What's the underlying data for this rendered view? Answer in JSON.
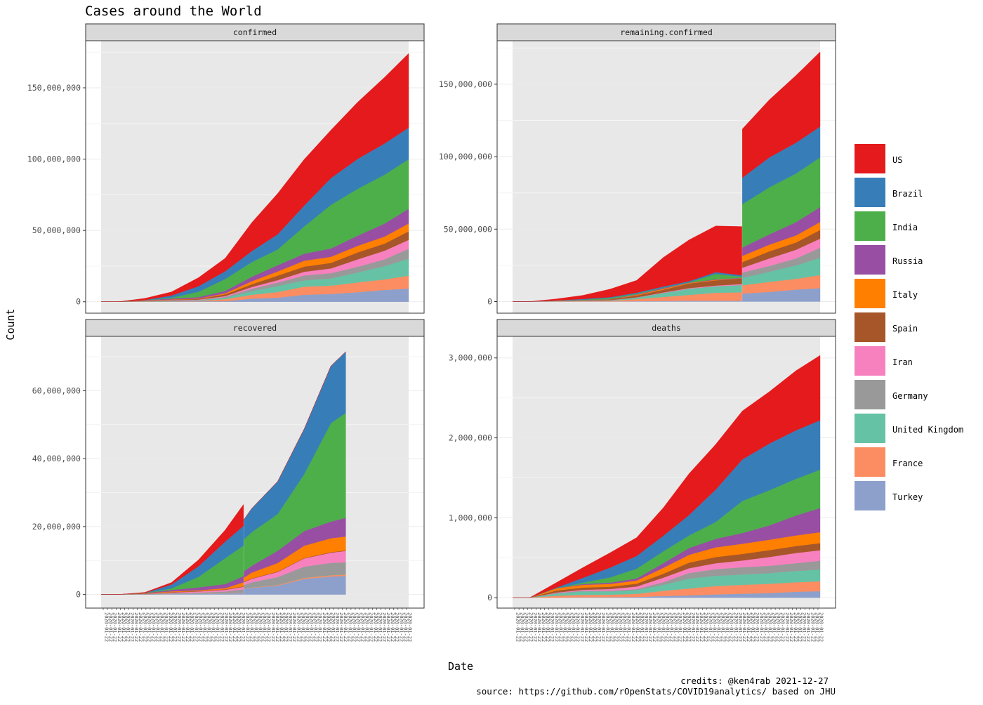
{
  "chart_data": {
    "type": "area",
    "stacked": true,
    "title": "Cases around the World",
    "xlabel": "Date",
    "ylabel": "Count",
    "legend_position": "right",
    "caption": [
      "credits:  @ken4rab 2021-12-27",
      "source: https://github.com/rOpenStats/COVID19analytics/ based on JHU"
    ],
    "x_dates": [
      "2020-01-22",
      "2020-03-01",
      "2020-05-01",
      "2020-07-01",
      "2020-09-01",
      "2020-11-01",
      "2021-01-01",
      "2021-03-01",
      "2021-05-01",
      "2021-07-01",
      "2021-09-01",
      "2021-11-01",
      "2021-12-26"
    ],
    "series_order": [
      "US",
      "Brazil",
      "India",
      "Russia",
      "Italy",
      "Spain",
      "Iran",
      "Germany",
      "United Kingdom",
      "France",
      "Turkey"
    ],
    "colors": {
      "US": "#E41A1C",
      "Brazil": "#377EB8",
      "India": "#4DAF4A",
      "Russia": "#984EA3",
      "Italy": "#FF7F00",
      "Spain": "#A65628",
      "Iran": "#F781BF",
      "Germany": "#999999",
      "United Kingdom": "#66C2A5",
      "France": "#FC8D62",
      "Turkey": "#8DA0CB"
    },
    "panels": [
      {
        "strip": "confirmed",
        "ylim": [
          -8000000,
          183000000
        ],
        "y_ticks": [
          0,
          50000000,
          100000000,
          150000000
        ],
        "y_tick_labels": [
          "0",
          "50,000,000",
          "100,000,000",
          "150,000,000"
        ],
        "x_tick_count": 72,
        "x_tick_text": "2020-01-22",
        "series": {
          "Turkey": [
            0,
            0,
            0.01,
            0.2,
            0.3,
            0.4,
            2.2,
            2.9,
            4.9,
            5.5,
            6.7,
            8.3,
            9.3
          ],
          "France": [
            0,
            0,
            0.15,
            0.17,
            0.3,
            1.4,
            2.7,
            3.9,
            5.7,
            5.8,
            6.9,
            7.4,
            9.0
          ],
          "United Kingdom": [
            0,
            0,
            0.2,
            0.3,
            0.35,
            1.0,
            2.5,
            4.2,
            4.4,
            5.0,
            7.0,
            9.3,
            11.9
          ],
          "Germany": [
            0,
            0,
            0.16,
            0.2,
            0.24,
            0.55,
            1.75,
            2.45,
            3.45,
            3.75,
            4.0,
            4.8,
            7.0
          ],
          "Iran": [
            0,
            0,
            0.1,
            0.23,
            0.38,
            0.63,
            1.23,
            1.68,
            2.6,
            3.3,
            5.2,
            6.0,
            6.2
          ],
          "Spain": [
            0,
            0,
            0.2,
            0.25,
            0.45,
            1.2,
            1.9,
            3.2,
            3.6,
            3.9,
            4.9,
            5.0,
            6.0
          ],
          "Italy": [
            0,
            0,
            0.2,
            0.24,
            0.27,
            0.73,
            2.13,
            2.93,
            4.13,
            4.27,
            4.6,
            4.9,
            5.5
          ],
          "Russia": [
            0,
            0,
            0.12,
            0.65,
            1.0,
            1.7,
            3.1,
            4.3,
            4.9,
            5.8,
            7.1,
            9.1,
            10.3
          ],
          "India": [
            0,
            0,
            0.04,
            0.6,
            3.7,
            8.3,
            10.3,
            11.1,
            19.1,
            30.6,
            32.9,
            34.3,
            34.7
          ],
          "Brazil": [
            0,
            0,
            0.09,
            1.5,
            3.9,
            5.5,
            7.7,
            10.6,
            14.7,
            18.8,
            21.0,
            21.9,
            22.2
          ],
          "US": [
            0,
            0.01,
            1.1,
            2.6,
            6.0,
            9.1,
            20.0,
            28.6,
            32.4,
            33.6,
            39.8,
            46.4,
            52.0
          ]
        },
        "series_units": 1000000
      },
      {
        "strip": "remaining.confirmed",
        "ylim": [
          -8000000,
          180000000
        ],
        "y_ticks": [
          0,
          50000000,
          100000000,
          150000000
        ],
        "y_tick_labels": [
          "0",
          "50,000,000",
          "100,000,000",
          "150,000,000"
        ],
        "x_tick_count": 72,
        "x_tick_text": "2020-01-22",
        "series_units": 1000000,
        "segments": [
          {
            "x_dates": [
              "2020-01-22",
              "2020-03-01",
              "2020-05-01",
              "2020-07-01",
              "2020-09-01",
              "2020-11-01",
              "2021-01-01",
              "2021-03-01",
              "2021-05-01",
              "2021-06-30"
            ],
            "series": {
              "Turkey": [
                0,
                0,
                0.03,
                0.08,
                0.1,
                0.3,
                0.5,
                0.6,
                0.6,
                0.6
              ],
              "France": [
                0,
                0,
                0.2,
                0.3,
                0.5,
                1.4,
                2.7,
                4.0,
                5.5,
                5.8
              ],
              "United Kingdom": [
                0,
                0,
                0.2,
                0.3,
                0.35,
                1.0,
                2.5,
                4.2,
                4.4,
                5.0
              ],
              "Germany": [
                0,
                0,
                0.02,
                0.02,
                0.03,
                0.15,
                0.3,
                0.1,
                0.1,
                0.1
              ],
              "Iran": [
                0,
                0,
                0.02,
                0.03,
                0.05,
                0.1,
                0.3,
                0.4,
                0.5,
                0.6
              ],
              "Spain": [
                0,
                0,
                0.2,
                0.25,
                0.45,
                1.2,
                1.9,
                3.2,
                3.6,
                3.9
              ],
              "Italy": [
                0,
                0,
                0.1,
                0.02,
                0.02,
                0.5,
                0.6,
                0.4,
                0.3,
                0.1
              ],
              "Russia": [
                0,
                0,
                0.05,
                0.1,
                0.15,
                0.4,
                0.6,
                0.2,
                0.4,
                0.3
              ],
              "India": [
                0,
                0,
                0.02,
                0.2,
                0.8,
                0.5,
                0.3,
                0.2,
                3.7,
                0.8
              ],
              "Brazil": [
                0,
                0,
                0.02,
                0.5,
                0.6,
                0.6,
                0.7,
                0.8,
                1.2,
                1.0
              ],
              "US": [
                0,
                0.01,
                1.0,
                2.5,
                5.5,
                8.5,
                20.0,
                28.5,
                31.9,
                33.6
              ]
            }
          },
          {
            "x_dates": [
              "2021-07-01",
              "2021-09-01",
              "2021-11-01",
              "2021-12-26"
            ],
            "series": {
              "Turkey": [
                5.5,
                6.7,
                8.3,
                9.3
              ],
              "France": [
                5.8,
                6.9,
                7.4,
                9.0
              ],
              "United Kingdom": [
                5.0,
                7.0,
                9.3,
                11.9
              ],
              "Germany": [
                3.75,
                4.0,
                4.8,
                7.0
              ],
              "Iran": [
                3.3,
                5.2,
                6.0,
                6.2
              ],
              "Spain": [
                3.9,
                4.9,
                5.0,
                6.0
              ],
              "Italy": [
                4.27,
                4.6,
                4.9,
                5.5
              ],
              "Russia": [
                5.8,
                7.1,
                9.1,
                10.3
              ],
              "India": [
                29.9,
                32.5,
                33.6,
                34.3
              ],
              "Brazil": [
                18.3,
                20.6,
                21.3,
                21.3
              ],
              "US": [
                33.6,
                39.8,
                46.4,
                51.5
              ]
            }
          }
        ]
      },
      {
        "strip": "recovered",
        "ylim": [
          -4000000,
          76000000
        ],
        "y_ticks": [
          0,
          20000000,
          40000000,
          60000000
        ],
        "y_tick_labels": [
          "0",
          "20,000,000",
          "40,000,000",
          "60,000,000"
        ],
        "x_tick_count": 72,
        "x_tick_text": "2020-01-22",
        "series_units": 1000000,
        "segments": [
          {
            "x_dates": [
              "2020-01-22",
              "2020-03-01",
              "2020-05-01",
              "2020-07-01",
              "2020-09-01",
              "2020-11-01",
              "2020-12-13"
            ],
            "series": {
              "Turkey": [
                0,
                0,
                0.01,
                0.15,
                0.25,
                0.35,
                0.5
              ],
              "France": [
                0,
                0,
                0.02,
                0.05,
                0.08,
                0.12,
                0.15
              ],
              "United Kingdom": [
                0,
                0,
                0.005,
                0.01,
                0.01,
                0.01,
                0.01
              ],
              "Germany": [
                0,
                0,
                0.12,
                0.18,
                0.22,
                0.4,
                0.85
              ],
              "Iran": [
                0,
                0,
                0.07,
                0.2,
                0.33,
                0.5,
                0.75
              ],
              "Spain": [
                0,
                0,
                0.1,
                0.15,
                0.15,
                0.15,
                0.15
              ],
              "Italy": [
                0,
                0,
                0.08,
                0.19,
                0.21,
                0.35,
                1.2
              ],
              "Russia": [
                0,
                0,
                0.02,
                0.4,
                0.85,
                1.2,
                1.8
              ],
              "India": [
                0,
                0,
                0.01,
                0.45,
                3.1,
                7.6,
                9.0
              ],
              "Brazil": [
                0,
                0,
                0.04,
                1.15,
                3.1,
                4.9,
                5.8
              ],
              "US": [
                0,
                0,
                0.15,
                0.6,
                1.9,
                3.4,
                6.3
              ]
            }
          },
          {
            "x_dates": [
              "2020-12-14",
              "2021-01-01",
              "2021-03-01",
              "2021-05-01",
              "2021-07-01",
              "2021-08-04"
            ],
            "series": {
              "Turkey": [
                1.7,
                2.0,
                2.6,
                4.6,
                5.3,
                5.5
              ],
              "France": [
                0.1,
                0.1,
                0.2,
                0.3,
                0.4,
                0.4
              ],
              "United Kingdom": [
                0.01,
                0.01,
                0.02,
                0.02,
                0.02,
                0.02
              ],
              "Germany": [
                1.0,
                1.5,
                2.3,
                3.3,
                3.6,
                3.6
              ],
              "Iran": [
                0.8,
                1.0,
                1.5,
                2.4,
                3.0,
                3.3
              ],
              "Spain": [
                0.15,
                0.15,
                0.15,
                0.15,
                0.15,
                0.15
              ],
              "Italy": [
                1.2,
                1.7,
                2.5,
                3.6,
                4.1,
                4.1
              ],
              "Russia": [
                1.9,
                2.0,
                3.6,
                4.3,
                4.9,
                5.5
              ],
              "India": [
                9.4,
                9.9,
                10.8,
                16.8,
                29.0,
                30.9
              ],
              "Brazil": [
                5.8,
                7.0,
                9.6,
                13.3,
                16.8,
                18.0
              ],
              "US": [
                0,
                0,
                0,
                0,
                0,
                0
              ]
            }
          }
        ]
      },
      {
        "strip": "deaths",
        "ylim": [
          -130000,
          3270000
        ],
        "y_ticks": [
          0,
          1000000,
          2000000,
          3000000
        ],
        "y_tick_labels": [
          "0",
          "1,000,000",
          "2,000,000",
          "3,000,000"
        ],
        "x_tick_count": 72,
        "x_tick_text": "2020-01-22",
        "series_units": 1000,
        "series": {
          "Turkey": [
            0,
            0,
            0.3,
            5,
            6,
            10,
            21,
            28,
            41,
            50,
            58,
            75,
            82
          ],
          "France": [
            0,
            0,
            24,
            30,
            31,
            38,
            65,
            87,
            105,
            111,
            116,
            118,
            123
          ],
          "United Kingdom": [
            0,
            0,
            27,
            44,
            41,
            47,
            75,
            124,
            128,
            129,
            134,
            142,
            148
          ],
          "Germany": [
            0,
            0,
            7,
            9,
            9,
            11,
            34,
            70,
            84,
            91,
            92,
            97,
            110
          ],
          "Iran": [
            0,
            0,
            6,
            11,
            21,
            34,
            55,
            60,
            73,
            85,
            110,
            128,
            131
          ],
          "Spain": [
            0,
            0,
            25,
            28,
            29,
            36,
            50,
            70,
            78,
            81,
            86,
            87,
            89
          ],
          "Italy": [
            0,
            0,
            28,
            34,
            35,
            38,
            73,
            98,
            121,
            128,
            130,
            132,
            137
          ],
          "Russia": [
            0,
            0,
            1,
            10,
            17,
            27,
            58,
            85,
            106,
            134,
            179,
            250,
            302
          ],
          "India": [
            0,
            0,
            1,
            18,
            65,
            122,
            149,
            157,
            211,
            402,
            440,
            458,
            480
          ],
          "Brazil": [
            0,
            0,
            6,
            60,
            122,
            159,
            195,
            256,
            406,
            520,
            584,
            608,
            618
          ],
          "US": [
            0,
            0,
            63,
            128,
            185,
            230,
            350,
            517,
            566,
            606,
            650,
            746,
            812
          ]
        }
      }
    ]
  },
  "legend": [
    {
      "name": "US",
      "label": "US"
    },
    {
      "name": "Brazil",
      "label": "Brazil"
    },
    {
      "name": "India",
      "label": "India"
    },
    {
      "name": "Russia",
      "label": "Russia"
    },
    {
      "name": "Italy",
      "label": "Italy"
    },
    {
      "name": "Spain",
      "label": "Spain"
    },
    {
      "name": "Iran",
      "label": "Iran"
    },
    {
      "name": "Germany",
      "label": "Germany"
    },
    {
      "name": "United Kingdom",
      "label": "United Kingdom"
    },
    {
      "name": "France",
      "label": "France"
    },
    {
      "name": "Turkey",
      "label": "Turkey"
    }
  ]
}
